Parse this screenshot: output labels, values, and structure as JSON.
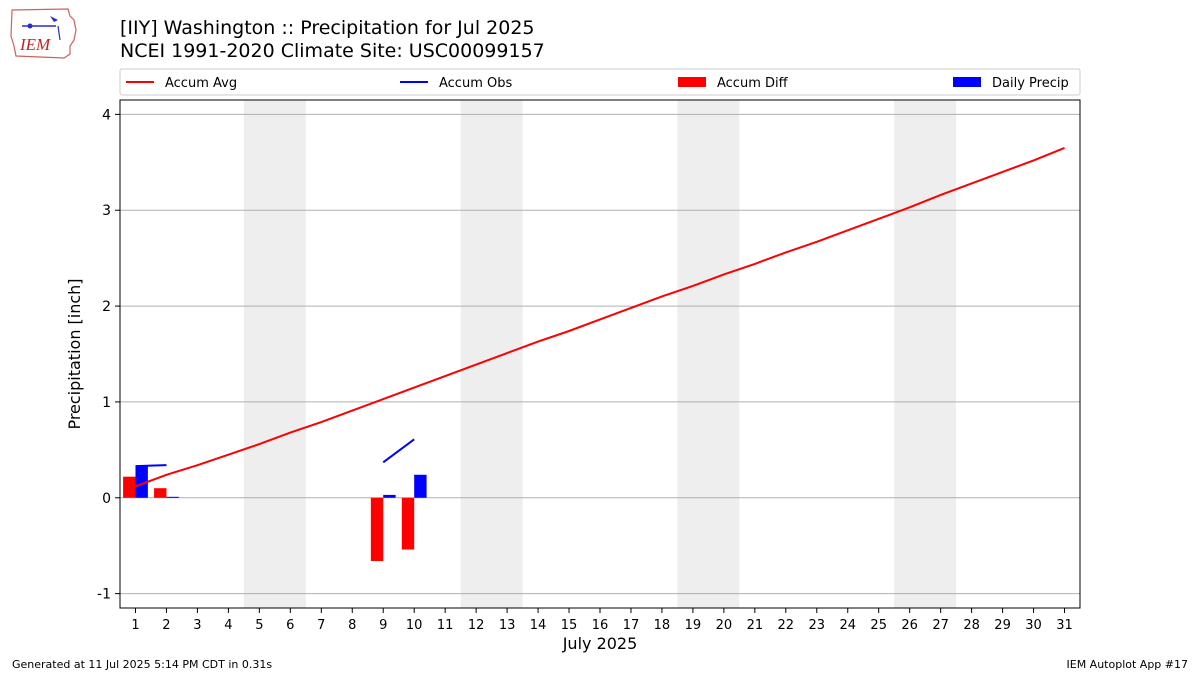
{
  "header": {
    "title": "[IIY] Washington :: Precipitation for Jul 2025",
    "subtitle": "NCEI 1991-2020 Climate Site: USC00099157",
    "logo_text": "IEM"
  },
  "footer": {
    "left": "Generated at 11 Jul 2025 5:14 PM CDT in 0.31s",
    "right": "IEM Autoplot App #17"
  },
  "colors": {
    "accum_avg": "#ff0000",
    "accum_obs": "#0000ff",
    "accum_diff": "#ff0000",
    "daily_precip": "#0000ff",
    "weekend_shade": "#eeeeee",
    "grid": "#b0b0b0"
  },
  "chart_data": {
    "type": "bar",
    "xlabel": "July 2025",
    "ylabel": "Precipitation [inch]",
    "xlim": [
      0.5,
      31.5
    ],
    "ylim": [
      -1.15,
      4.15
    ],
    "yticks": [
      -1,
      0,
      1,
      2,
      3,
      4
    ],
    "grid": "horizontal",
    "legend_position": "top",
    "x": [
      1,
      2,
      3,
      4,
      5,
      6,
      7,
      8,
      9,
      10,
      11,
      12,
      13,
      14,
      15,
      16,
      17,
      18,
      19,
      20,
      21,
      22,
      23,
      24,
      25,
      26,
      27,
      28,
      29,
      30,
      31
    ],
    "weekend_spans": [
      [
        5,
        6
      ],
      [
        12,
        13
      ],
      [
        19,
        20
      ],
      [
        26,
        27
      ]
    ],
    "series": [
      {
        "name": "Accum Avg",
        "kind": "line",
        "values": [
          0.12,
          0.24,
          0.34,
          0.45,
          0.56,
          0.68,
          0.79,
          0.91,
          1.03,
          1.15,
          1.27,
          1.39,
          1.51,
          1.63,
          1.74,
          1.86,
          1.98,
          2.1,
          2.21,
          2.33,
          2.44,
          2.56,
          2.67,
          2.79,
          2.91,
          3.03,
          3.16,
          3.28,
          3.4,
          3.52,
          3.65
        ]
      },
      {
        "name": "Accum Obs",
        "kind": "line",
        "segments": [
          {
            "x": [
              1,
              2
            ],
            "values": [
              0.33,
              0.34
            ]
          },
          {
            "x": [
              9,
              10
            ],
            "values": [
              0.37,
              0.61
            ]
          }
        ]
      },
      {
        "name": "Accum Diff",
        "kind": "bar",
        "x": [
          1,
          2,
          9,
          10
        ],
        "values": [
          0.22,
          0.1,
          -0.66,
          -0.54
        ]
      },
      {
        "name": "Daily Precip",
        "kind": "bar",
        "x": [
          1,
          2,
          9,
          10
        ],
        "values": [
          0.33,
          0.01,
          0.03,
          0.24
        ]
      }
    ]
  }
}
